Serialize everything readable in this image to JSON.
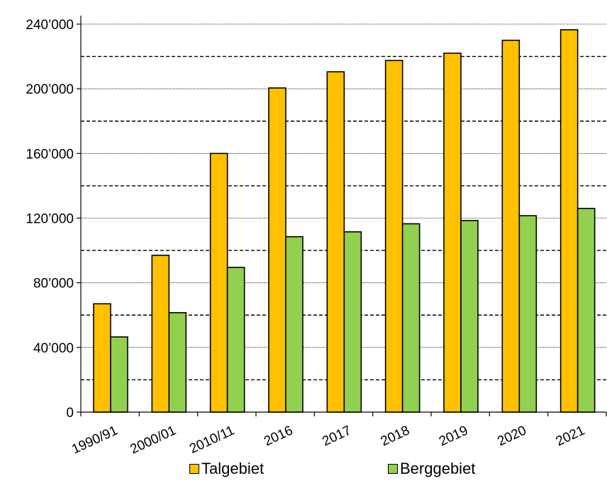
{
  "chart_data": {
    "type": "bar",
    "categories": [
      "1990/91",
      "2000/01",
      "2010/11",
      "2016",
      "2017",
      "2018",
      "2019",
      "2020",
      "2021"
    ],
    "series": [
      {
        "name": "Talgebiet",
        "color": "#FFC000",
        "values": [
          67000,
          97000,
          160000,
          200500,
          210500,
          217500,
          222000,
          230000,
          236500
        ]
      },
      {
        "name": "Berggebiet",
        "color": "#92D050",
        "values": [
          46500,
          61500,
          89500,
          108500,
          111500,
          116500,
          118500,
          121500,
          126000
        ]
      }
    ],
    "y_tick_labels": [
      "0",
      "40’000",
      "80’000",
      "120’000",
      "160’000",
      "200’000",
      "240’000"
    ],
    "y_tick_values": [
      0,
      40000,
      80000,
      120000,
      160000,
      200000,
      240000
    ],
    "ylim": [
      0,
      240000
    ],
    "minor_gridlines": [
      20000,
      60000,
      100000,
      140000,
      180000,
      220000
    ],
    "grid": true,
    "legend_position": "bottom"
  }
}
